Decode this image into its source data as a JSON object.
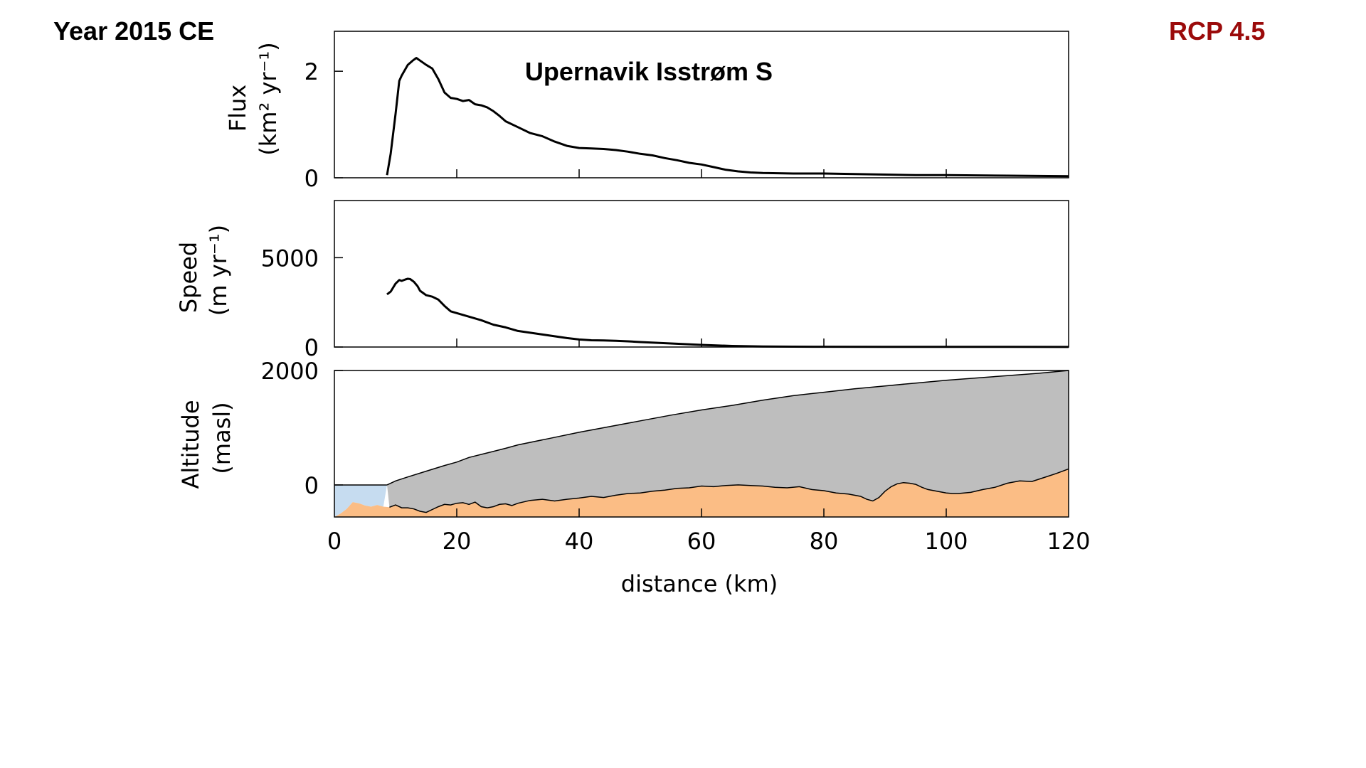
{
  "header": {
    "year_label": "Year 2015 CE",
    "scenario_label": "RCP 4.5",
    "scenario_color": "#9b0b0b"
  },
  "chart_data": {
    "type": "line",
    "glacier_title": "Upernavik Isstrøm S",
    "xlabel": "distance (km)",
    "xlim": [
      0,
      120
    ],
    "xticks": [
      0,
      20,
      40,
      60,
      80,
      100,
      120
    ],
    "colors": {
      "line": "#000000",
      "ice_fill": "#bebebe",
      "bed_fill": "#fbbd85",
      "ocean_fill": "#c6dcf0"
    },
    "panels": [
      {
        "id": "flux",
        "ylabel": [
          "Flux",
          "(km² yr⁻¹)"
        ],
        "ylim": [
          0,
          2.75
        ],
        "yticks": [
          0,
          2
        ],
        "series": [
          {
            "x": [
              8.6,
              9.2,
              10,
              10.6,
              11,
              12,
              12.8,
              13.4,
              14,
              15,
              16,
              17,
              18,
              19,
              20,
              21,
              22,
              23,
              24,
              25,
              26,
              27,
              28,
              30,
              32,
              34,
              36,
              38,
              40,
              42,
              44,
              46,
              48,
              50,
              52,
              54,
              56,
              58,
              60,
              62,
              64,
              66,
              68,
              70,
              75,
              80,
              85,
              90,
              95,
              100,
              110,
              120
            ],
            "y": [
              0.05,
              0.45,
              1.2,
              1.82,
              1.92,
              2.12,
              2.2,
              2.25,
              2.2,
              2.12,
              2.05,
              1.85,
              1.6,
              1.5,
              1.48,
              1.44,
              1.46,
              1.38,
              1.36,
              1.32,
              1.25,
              1.16,
              1.06,
              0.95,
              0.84,
              0.78,
              0.68,
              0.6,
              0.56,
              0.55,
              0.54,
              0.52,
              0.49,
              0.45,
              0.42,
              0.37,
              0.33,
              0.28,
              0.25,
              0.2,
              0.15,
              0.12,
              0.1,
              0.09,
              0.08,
              0.08,
              0.07,
              0.06,
              0.05,
              0.05,
              0.04,
              0.03
            ]
          }
        ]
      },
      {
        "id": "speed",
        "ylabel": [
          "Speed",
          "(m yr⁻¹)"
        ],
        "ylim": [
          0,
          8200
        ],
        "yticks": [
          0,
          5000
        ],
        "series": [
          {
            "x": [
              8.6,
              9.2,
              10,
              10.6,
              11,
              11.6,
              12,
              12.4,
              13,
              13.6,
              14,
              15,
              16,
              17,
              18,
              19,
              20,
              22,
              24,
              26,
              28,
              30,
              32,
              34,
              36,
              38,
              40,
              42,
              44,
              46,
              48,
              50,
              55,
              60,
              65,
              70,
              75,
              80,
              90,
              100,
              110,
              120
            ],
            "y": [
              2950,
              3100,
              3550,
              3750,
              3700,
              3780,
              3820,
              3800,
              3650,
              3400,
              3150,
              2900,
              2820,
              2650,
              2300,
              2000,
              1900,
              1700,
              1500,
              1250,
              1100,
              900,
              800,
              700,
              600,
              500,
              420,
              380,
              370,
              350,
              320,
              280,
              200,
              120,
              60,
              30,
              20,
              15,
              10,
              8,
              6,
              5
            ]
          }
        ]
      },
      {
        "id": "altitude",
        "ylabel": [
          "Altitude",
          "(masl)"
        ],
        "ylim": [
          -560,
          2000
        ],
        "yticks": [
          0,
          2000
        ],
        "series": [
          {
            "name": "surface",
            "x": [
              8.6,
              10,
              12,
              15,
              18,
              20,
              22,
              25,
              28,
              30,
              35,
              40,
              45,
              50,
              55,
              60,
              65,
              70,
              75,
              80,
              85,
              90,
              95,
              100,
              105,
              110,
              115,
              120
            ],
            "y": [
              0,
              70,
              140,
              240,
              340,
              400,
              480,
              560,
              640,
              700,
              810,
              920,
              1020,
              1120,
              1220,
              1310,
              1390,
              1480,
              1560,
              1620,
              1680,
              1730,
              1780,
              1830,
              1870,
              1910,
              1950,
              2000
            ]
          },
          {
            "name": "bed",
            "x": [
              0,
              1,
              2,
              3,
              4,
              5,
              6,
              7,
              8,
              9,
              10,
              11,
              12,
              13,
              14,
              15,
              16,
              17,
              18,
              19,
              20,
              21,
              22,
              23,
              24,
              25,
              26,
              27,
              28,
              29,
              30,
              32,
              34,
              36,
              38,
              40,
              42,
              44,
              46,
              48,
              50,
              52,
              54,
              56,
              58,
              60,
              62,
              64,
              66,
              68,
              70,
              72,
              74,
              76,
              78,
              80,
              82,
              84,
              86,
              87,
              88,
              89,
              90,
              91,
              92,
              93,
              94,
              95,
              96,
              97,
              98,
              99,
              100,
              101,
              102,
              104,
              106,
              108,
              110,
              112,
              114,
              116,
              118,
              120
            ],
            "y": [
              -560,
              -500,
              -420,
              -300,
              -320,
              -360,
              -380,
              -350,
              -380,
              -390,
              -350,
              -400,
              -400,
              -420,
              -460,
              -480,
              -430,
              -380,
              -340,
              -350,
              -320,
              -310,
              -340,
              -300,
              -380,
              -400,
              -380,
              -340,
              -330,
              -360,
              -320,
              -270,
              -250,
              -280,
              -250,
              -230,
              -200,
              -220,
              -180,
              -150,
              -140,
              -110,
              -90,
              -60,
              -50,
              -20,
              -30,
              -10,
              0,
              -10,
              -20,
              -40,
              -50,
              -30,
              -80,
              -100,
              -140,
              -160,
              -200,
              -250,
              -280,
              -220,
              -110,
              -30,
              20,
              40,
              30,
              10,
              -40,
              -80,
              -100,
              -120,
              -140,
              -150,
              -150,
              -130,
              -80,
              -40,
              30,
              70,
              60,
              130,
              200,
              280
            ]
          }
        ]
      }
    ]
  }
}
